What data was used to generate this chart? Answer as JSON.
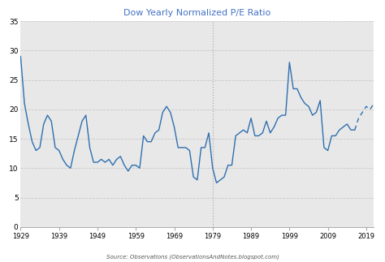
{
  "title": "Dow Yearly Normalized P/E Ratio",
  "source_text": "Source: Observations (ObservationsAndNotes.blogspot.com)",
  "title_color": "#4472c4",
  "line_color": "#2e6faf",
  "bg_color": "#ffffff",
  "plot_bg_color": "#e8e8e8",
  "xlim": [
    1929,
    2021
  ],
  "ylim": [
    0,
    35
  ],
  "yticks": [
    0,
    5,
    10,
    15,
    20,
    25,
    30,
    35
  ],
  "xticks": [
    1929,
    1939,
    1949,
    1959,
    1969,
    1979,
    1989,
    1999,
    2009,
    2019
  ],
  "vline_x": 1979,
  "solid_data": {
    "years": [
      1929,
      1930,
      1931,
      1932,
      1933,
      1934,
      1935,
      1936,
      1937,
      1938,
      1939,
      1940,
      1941,
      1942,
      1943,
      1944,
      1945,
      1946,
      1947,
      1948,
      1949,
      1950,
      1951,
      1952,
      1953,
      1954,
      1955,
      1956,
      1957,
      1958,
      1959,
      1960,
      1961,
      1962,
      1963,
      1964,
      1965,
      1966,
      1967,
      1968,
      1969,
      1970,
      1971,
      1972,
      1973,
      1974,
      1975,
      1976,
      1977,
      1978,
      1979,
      1980,
      1981,
      1982,
      1983,
      1984,
      1985,
      1986,
      1987,
      1988,
      1989,
      1990,
      1991,
      1992,
      1993,
      1994,
      1995,
      1996,
      1997,
      1998,
      1999,
      2000,
      2001,
      2002,
      2003,
      2004,
      2005,
      2006,
      2007,
      2008,
      2009,
      2010,
      2011,
      2012,
      2013,
      2014,
      2015,
      2016
    ],
    "values": [
      29.0,
      21.0,
      17.5,
      14.5,
      13.0,
      13.5,
      17.5,
      19.0,
      18.0,
      13.5,
      13.0,
      11.5,
      10.5,
      10.0,
      13.0,
      15.5,
      18.0,
      19.0,
      13.5,
      11.0,
      11.0,
      11.5,
      11.0,
      11.5,
      10.5,
      11.5,
      12.0,
      10.5,
      9.5,
      10.5,
      10.5,
      10.0,
      15.5,
      14.5,
      14.5,
      16.0,
      16.5,
      19.5,
      20.5,
      19.5,
      17.0,
      13.5,
      13.5,
      13.5,
      13.0,
      8.5,
      8.0,
      13.5,
      13.5,
      16.0,
      10.0,
      7.5,
      8.0,
      8.5,
      10.5,
      10.5,
      15.5,
      16.0,
      16.5,
      16.0,
      18.5,
      15.5,
      15.5,
      16.0,
      18.0,
      16.0,
      17.0,
      18.5,
      19.0,
      19.0,
      28.0,
      23.5,
      23.5,
      22.0,
      21.0,
      20.5,
      19.0,
      19.5,
      21.5,
      13.5,
      13.0,
      15.5,
      15.5,
      16.5,
      17.0,
      17.5,
      16.5,
      16.5
    ]
  },
  "dashed_data": {
    "years": [
      2016,
      2017,
      2018,
      2019,
      2020,
      2021
    ],
    "values": [
      16.5,
      18.5,
      19.5,
      20.5,
      20.0,
      21.0
    ]
  },
  "grid_color": "#c0c0c0",
  "grid_style": "--",
  "grid_alpha": 0.8,
  "vline_color": "#b0b0b0",
  "vline_style": ":"
}
